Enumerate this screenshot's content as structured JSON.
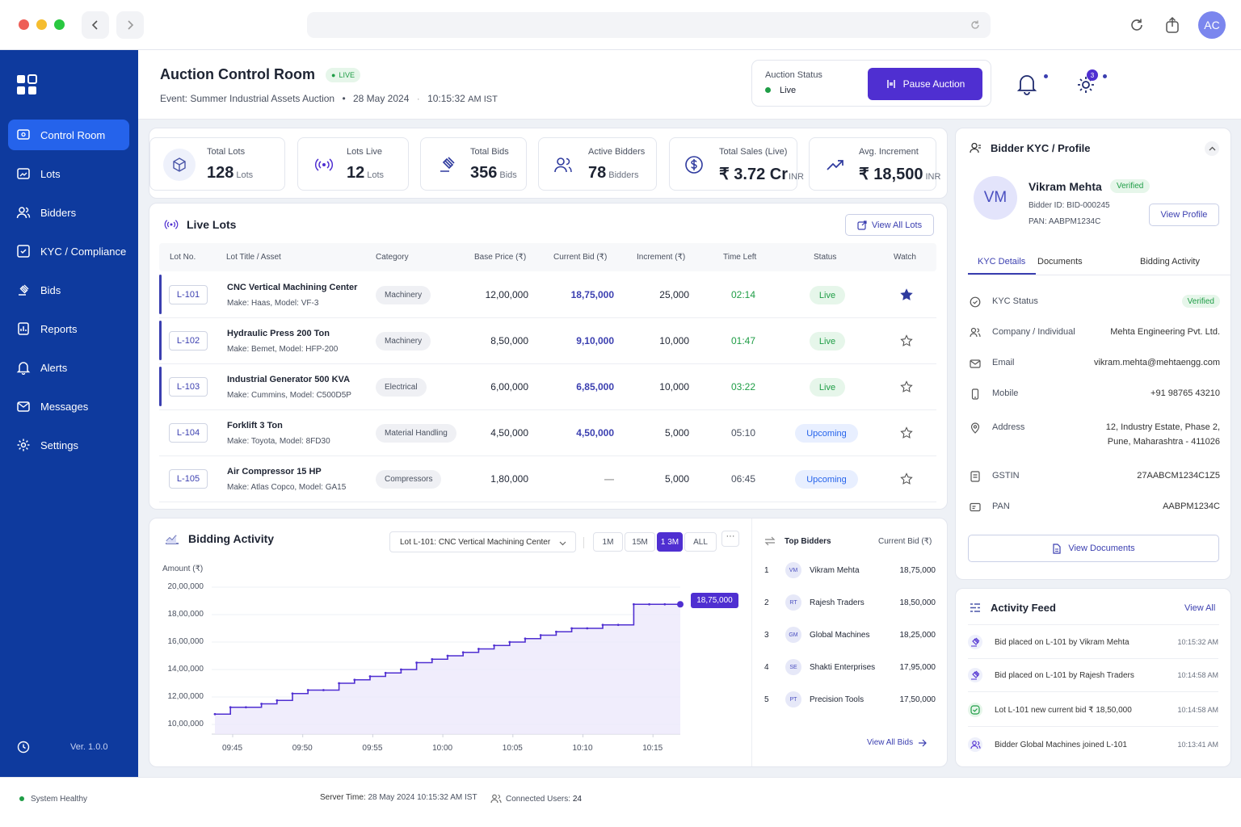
{
  "chrome": {
    "avatar": "AC"
  },
  "sidebar": {
    "items": [
      {
        "label": "Control Room"
      },
      {
        "label": "Lots"
      },
      {
        "label": "Bidders"
      },
      {
        "label": "KYC / Compliance"
      },
      {
        "label": "Bids"
      },
      {
        "label": "Reports"
      },
      {
        "label": "Alerts"
      },
      {
        "label": "Messages"
      },
      {
        "label": "Settings"
      }
    ],
    "version": "Ver. 1.0.0"
  },
  "header": {
    "title": "Auction Control Room",
    "live_badge": "LIVE",
    "event": "Event: Summer Industrial Assets Auction",
    "date": "28 May 2024",
    "time": "10:15:32",
    "tz": "AM IST",
    "status_label": "Auction Status",
    "status_value": "Live",
    "pause_label": "Pause Auction",
    "settings_count": "3"
  },
  "stats": [
    {
      "label": "Total Lots",
      "value": "128",
      "unit": "Lots"
    },
    {
      "label": "Lots Live",
      "value": "12",
      "unit": "Lots"
    },
    {
      "label": "Total Bids",
      "value": "356",
      "unit": "Bids"
    },
    {
      "label": "Active Bidders",
      "value": "78",
      "unit": "Bidders"
    },
    {
      "label": "Total Sales (Live)",
      "value": "₹ 3.72 Cr",
      "unit": "INR"
    },
    {
      "label": "Avg. Increment",
      "value": "₹ 18,500",
      "unit": "INR"
    }
  ],
  "live_lots": {
    "title": "Live Lots",
    "view_all": "View All Lots",
    "columns": [
      "Lot No.",
      "Lot Title / Asset",
      "Category",
      "Base Price (₹)",
      "Current Bid (₹)",
      "Increment (₹)",
      "Time Left",
      "Status",
      "Watch"
    ],
    "rows": [
      {
        "lot": "L-101",
        "title": "CNC Vertical Machining Center",
        "sub": "Make: Haas, Model: VF-3",
        "category": "Machinery",
        "base": "12,00,000",
        "bid": "18,75,000",
        "inc": "25,000",
        "time": "02:14",
        "status": "Live",
        "watched": true
      },
      {
        "lot": "L-102",
        "title": "Hydraulic Press 200 Ton",
        "sub": "Make: Bemet, Model: HFP-200",
        "category": "Machinery",
        "base": "8,50,000",
        "bid": "9,10,000",
        "inc": "10,000",
        "time": "01:47",
        "status": "Live",
        "watched": false
      },
      {
        "lot": "L-103",
        "title": "Industrial Generator 500 KVA",
        "sub": "Make: Cummins, Model: C500D5P",
        "category": "Electrical",
        "base": "6,00,000",
        "bid": "6,85,000",
        "inc": "10,000",
        "time": "03:22",
        "status": "Live",
        "watched": false
      },
      {
        "lot": "L-104",
        "title": "Forklift 3 Ton",
        "sub": "Make: Toyota, Model: 8FD30",
        "category": "Material Handling",
        "base": "4,50,000",
        "bid": "4,50,000",
        "inc": "5,000",
        "time": "05:10",
        "status": "Upcoming",
        "watched": false
      },
      {
        "lot": "L-105",
        "title": "Air Compressor 15 HP",
        "sub": "Make: Atlas Copco, Model: GA15",
        "category": "Compressors",
        "base": "1,80,000",
        "bid": "—",
        "inc": "5,000",
        "time": "06:45",
        "status": "Upcoming",
        "watched": false
      }
    ]
  },
  "bidding": {
    "title": "Bidding Activity",
    "lot_select": "Lot L-101: CNC Vertical Machining Center",
    "ranges": [
      "1M",
      "15M",
      "1 3M",
      "ALL"
    ],
    "active_range": "1 3M",
    "y_title": "Amount (₹)",
    "last_value_label": "18,75,000"
  },
  "chart_data": {
    "type": "line",
    "title": "",
    "ylabel": "Amount (₹)",
    "xlabel": "",
    "x_ticks": [
      "09:45",
      "09:50",
      "09:55",
      "10:00",
      "10:05",
      "10:10",
      "10:15"
    ],
    "y_ticks": [
      "10,00,000",
      "12,00,000",
      "14,00,000",
      "16,00,000",
      "18,00,000",
      "20,00,000"
    ],
    "ylim": [
      1000000,
      2000000
    ],
    "series": [
      {
        "x": [
          "09:45",
          "09:46",
          "09:47",
          "09:48",
          "09:49",
          "09:50",
          "09:51",
          "09:52",
          "09:53",
          "09:54",
          "09:55",
          "09:56",
          "09:57",
          "09:58",
          "09:59",
          "10:00",
          "10:01",
          "10:02",
          "10:03",
          "10:04",
          "10:05",
          "10:06",
          "10:07",
          "10:08",
          "10:09",
          "10:10",
          "10:11",
          "10:12",
          "10:13",
          "10:14",
          "10:15"
        ],
        "values": [
          1075000,
          1125000,
          1125000,
          1150000,
          1175000,
          1225000,
          1250000,
          1250000,
          1300000,
          1325000,
          1350000,
          1375000,
          1400000,
          1450000,
          1475000,
          1500000,
          1525000,
          1550000,
          1575000,
          1600000,
          1625000,
          1650000,
          1675000,
          1700000,
          1700000,
          1725000,
          1725000,
          1875000,
          1875000,
          1875000,
          1875000
        ]
      }
    ],
    "grid": true
  },
  "top_bidders": {
    "title": "Top Bidders",
    "col_bid": "Current Bid (₹)",
    "rows": [
      {
        "rank": "1",
        "initials": "VM",
        "name": "Vikram Mehta",
        "bid": "18,75,000"
      },
      {
        "rank": "2",
        "initials": "RT",
        "name": "Rajesh Traders",
        "bid": "18,50,000"
      },
      {
        "rank": "3",
        "initials": "GM",
        "name": "Global Machines",
        "bid": "18,25,000"
      },
      {
        "rank": "4",
        "initials": "SE",
        "name": "Shakti Enterprises",
        "bid": "17,95,000"
      },
      {
        "rank": "5",
        "initials": "PT",
        "name": "Precision Tools",
        "bid": "17,50,000"
      }
    ],
    "view_all": "View All Bids"
  },
  "kyc": {
    "title": "Bidder KYC / Profile",
    "initials": "VM",
    "name": "Vikram Mehta",
    "verified": "Verified",
    "bidder_id": "Bidder ID: BID-000245",
    "pan_line": "PAN: AABPM1234C",
    "view_profile": "View Profile",
    "tabs": [
      "KYC Details",
      "Documents",
      "Bidding Activity"
    ],
    "fields": [
      {
        "k": "KYC Status",
        "v": "Verified"
      },
      {
        "k": "Company / Individual",
        "v": "Mehta Engineering Pvt. Ltd."
      },
      {
        "k": "Email",
        "v": "vikram.mehta@mehtaengg.com"
      },
      {
        "k": "Mobile",
        "v": "+91 98765 43210"
      },
      {
        "k": "Address",
        "v": "12, Industry Estate, Phase 2,",
        "v2": "Pune, Maharashtra - 411026"
      },
      {
        "k": "GSTIN",
        "v": "27AABCM1234C1Z5"
      },
      {
        "k": "PAN",
        "v": "AABPM1234C"
      }
    ],
    "view_docs": "View Documents"
  },
  "activity": {
    "title": "Activity Feed",
    "view_all": "View All",
    "items": [
      {
        "text": "Bid placed on L-101 by Vikram Mehta",
        "time": "10:15:32 AM"
      },
      {
        "text": "Bid placed on L-101 by Rajesh Traders",
        "time": "10:14:58 AM"
      },
      {
        "text": "Lot L-101 new current bid ₹ 18,50,000",
        "time": "10:14:58 AM"
      },
      {
        "text": "Bidder Global Machines joined L-101",
        "time": "10:13:41 AM"
      }
    ]
  },
  "footer": {
    "health": "System Healthy",
    "server_label": "Server Time:",
    "server_value": "28 May 2024 10:15:32 AM IST",
    "users_label": "Connected Users:",
    "users_value": "24"
  },
  "colors": {
    "sidebar": "#0e3a9e",
    "accent": "#4f2fd1",
    "live": "#1f9d46",
    "upcoming": "#2563eb"
  }
}
